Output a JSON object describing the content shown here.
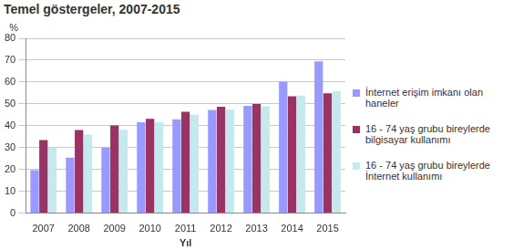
{
  "chart_data": {
    "type": "bar",
    "title": "Temel göstergeler, 2007-2015",
    "x_label": "Yıl",
    "y_label": "%",
    "categories": [
      "2007",
      "2008",
      "2009",
      "2010",
      "2011",
      "2012",
      "2013",
      "2014",
      "2015"
    ],
    "series": [
      {
        "name": "İnternet erişim imkanı olan haneler",
        "color": "#9999ff",
        "values": [
          19.7,
          25.4,
          30.0,
          41.6,
          42.9,
          47.2,
          49.1,
          60.2,
          69.5
        ]
      },
      {
        "name": "16 - 74 yaş grubu bireylerde bilgisayar kullanımı",
        "color": "#993366",
        "values": [
          33.4,
          38.0,
          40.1,
          43.2,
          46.4,
          48.7,
          49.9,
          53.5,
          54.8
        ]
      },
      {
        "name": "16 - 74 yaş grubu bireylerde İnternet kullanımı",
        "color": "#c4eaef",
        "values": [
          30.0,
          35.9,
          38.1,
          41.6,
          45.0,
          47.4,
          48.9,
          53.8,
          55.9
        ]
      }
    ],
    "ylim": [
      0,
      80
    ],
    "yticks": [
      0,
      10,
      20,
      30,
      40,
      50,
      60,
      70,
      80
    ],
    "grid": true,
    "legend": "right"
  }
}
